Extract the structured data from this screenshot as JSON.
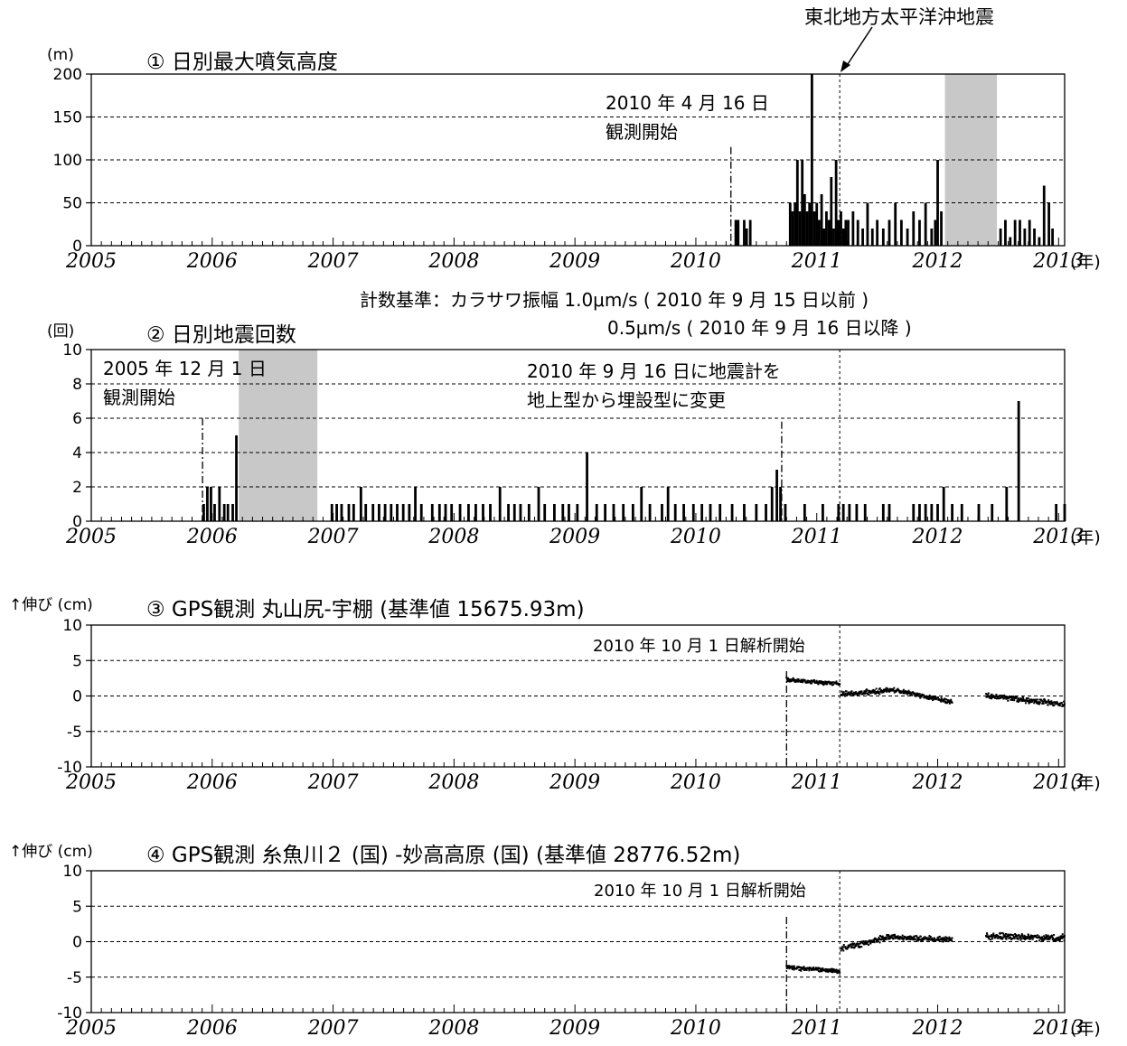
{
  "event_label": "東北地方太平洋沖地震",
  "year_unit": "(年)",
  "count_criteria": {
    "line1": "計数基準：カラサワ振幅 1.0μm/s ( 2010 年 9 月 15 日以前 )",
    "line2": "0.5μm/s ( 2010 年 9 月 16 日以降 )"
  },
  "chart_data": [
    {
      "type": "bar",
      "title": "① 日別最大噴気高度",
      "ylabel": "(m)",
      "xlim": [
        2005,
        2013.05
      ],
      "ylim": [
        0,
        200
      ],
      "yticks": [
        0,
        50,
        100,
        150,
        200
      ],
      "xticks": [
        "2005",
        "2006",
        "2007",
        "2008",
        "2009",
        "2010",
        "2011",
        "2012",
        "2013"
      ],
      "annotations": [
        "2010 年 4 月 16 日",
        "観測開始"
      ],
      "observation_start": 2010.29,
      "shaded_periods": [
        [
          2012.06,
          2012.49
        ]
      ],
      "series": [
        {
          "x": [
            2010.33,
            2010.35,
            2010.4,
            2010.42,
            2010.45,
            2010.78,
            2010.8,
            2010.82,
            2010.84,
            2010.86,
            2010.88,
            2010.9,
            2010.92,
            2010.94,
            2010.96,
            2010.98,
            2011.0,
            2011.02,
            2011.04,
            2011.06,
            2011.08,
            2011.1,
            2011.12,
            2011.14,
            2011.16,
            2011.18,
            2011.2,
            2011.22,
            2011.24,
            2011.26,
            2011.3,
            2011.34,
            2011.38,
            2011.42,
            2011.46,
            2011.5,
            2011.55,
            2011.6,
            2011.65,
            2011.7,
            2011.75,
            2011.8,
            2011.85,
            2011.9,
            2011.95,
            2011.98,
            2012.0,
            2012.03,
            2012.52,
            2012.56,
            2012.6,
            2012.64,
            2012.68,
            2012.72,
            2012.76,
            2012.8,
            2012.84,
            2012.88,
            2012.92,
            2012.95
          ],
          "values": [
            30,
            30,
            30,
            20,
            30,
            50,
            40,
            50,
            100,
            40,
            100,
            60,
            40,
            50,
            200,
            40,
            50,
            30,
            60,
            20,
            40,
            30,
            80,
            20,
            100,
            30,
            40,
            20,
            30,
            30,
            40,
            30,
            20,
            50,
            20,
            30,
            20,
            30,
            50,
            30,
            20,
            40,
            30,
            50,
            20,
            30,
            100,
            40,
            20,
            30,
            10,
            30,
            30,
            20,
            30,
            20,
            10,
            70,
            50,
            20
          ]
        }
      ]
    },
    {
      "type": "bar",
      "title": "② 日別地震回数",
      "ylabel": "(回)",
      "xlim": [
        2005,
        2013.05
      ],
      "ylim": [
        0,
        10
      ],
      "yticks": [
        0,
        2,
        4,
        6,
        8,
        10
      ],
      "xticks": [
        "2005",
        "2006",
        "2007",
        "2008",
        "2009",
        "2010",
        "2011",
        "2012",
        "2013"
      ],
      "annotations": [
        "2005 年 12 月 1 日",
        "観測開始",
        "2010 年 9 月 16 日に地震計を",
        "地上型から埋設型に変更"
      ],
      "observation_start": 2005.92,
      "instrument_change": 2010.71,
      "shaded_periods": [
        [
          2006.22,
          2006.87
        ]
      ],
      "series": [
        {
          "x": [
            2005.93,
            2005.96,
            2005.99,
            2006.02,
            2006.06,
            2006.1,
            2006.13,
            2006.17,
            2006.2,
            2006.99,
            2007.03,
            2007.07,
            2007.13,
            2007.17,
            2007.23,
            2007.27,
            2007.33,
            2007.38,
            2007.43,
            2007.48,
            2007.53,
            2007.58,
            2007.63,
            2007.68,
            2007.73,
            2007.82,
            2007.88,
            2007.93,
            2007.98,
            2008.05,
            2008.12,
            2008.18,
            2008.24,
            2008.3,
            2008.38,
            2008.45,
            2008.5,
            2008.55,
            2008.62,
            2008.7,
            2008.75,
            2008.83,
            2008.9,
            2008.95,
            2009.02,
            2009.1,
            2009.18,
            2009.25,
            2009.32,
            2009.4,
            2009.48,
            2009.55,
            2009.62,
            2009.72,
            2009.77,
            2009.83,
            2009.9,
            2009.98,
            2010.05,
            2010.12,
            2010.2,
            2010.3,
            2010.4,
            2010.5,
            2010.58,
            2010.63,
            2010.67,
            2010.7,
            2010.74,
            2010.9,
            2011.05,
            2011.18,
            2011.22,
            2011.27,
            2011.33,
            2011.4,
            2011.55,
            2011.6,
            2011.8,
            2011.85,
            2011.9,
            2011.95,
            2012.0,
            2012.05,
            2012.12,
            2012.2,
            2012.34,
            2012.45,
            2012.57,
            2012.67,
            2012.98,
            2013.05
          ],
          "values": [
            1,
            2,
            2,
            1,
            2,
            1,
            1,
            1,
            5,
            1,
            1,
            1,
            1,
            1,
            2,
            1,
            1,
            1,
            1,
            1,
            1,
            1,
            1,
            2,
            1,
            1,
            1,
            1,
            1,
            1,
            1,
            1,
            1,
            1,
            2,
            1,
            1,
            1,
            1,
            2,
            1,
            1,
            1,
            1,
            1,
            4,
            1,
            1,
            1,
            1,
            1,
            2,
            1,
            1,
            2,
            1,
            1,
            1,
            1,
            1,
            1,
            1,
            1,
            1,
            1,
            2,
            3,
            2,
            1,
            1,
            1,
            1,
            1,
            1,
            1,
            1,
            1,
            1,
            1,
            1,
            1,
            1,
            1,
            2,
            1,
            1,
            1,
            1,
            2,
            7,
            1,
            1
          ]
        }
      ]
    },
    {
      "type": "scatter",
      "title": "③ GPS観測 丸山尻-宇棚 (基準値 15675.93m)",
      "ylabel": "↑伸び (cm)",
      "xlim": [
        2005,
        2013.05
      ],
      "ylim": [
        -10,
        10
      ],
      "yticks": [
        -10,
        -5,
        0,
        5,
        10
      ],
      "xticks": [
        "2005",
        "2006",
        "2007",
        "2008",
        "2009",
        "2010",
        "2011",
        "2012",
        "2013"
      ],
      "annotations": [
        "2010 年 10 月 1 日解析開始"
      ],
      "analysis_start": 2010.75,
      "series": [
        {
          "segments": [
            {
              "x0": 2010.75,
              "x1": 2011.19,
              "y0": 2.3,
              "y1": 1.7,
              "scatter": 0.35
            },
            {
              "x0": 2011.2,
              "x1": 2011.4,
              "y0": 0.3,
              "y1": 0.4,
              "scatter": 0.4
            },
            {
              "x0": 2011.4,
              "x1": 2011.65,
              "y0": 0.5,
              "y1": 0.9,
              "scatter": 0.45
            },
            {
              "x0": 2011.65,
              "x1": 2012.12,
              "y0": 0.8,
              "y1": -0.8,
              "scatter": 0.4
            },
            {
              "x0": 2012.4,
              "x1": 2013.05,
              "y0": 0.1,
              "y1": -1.2,
              "scatter": 0.45
            }
          ]
        }
      ]
    },
    {
      "type": "scatter",
      "title": "④ GPS観測 糸魚川２ (国) -妙高高原 (国) (基準値 28776.52m)",
      "ylabel": "↑伸び (cm)",
      "xlim": [
        2005,
        2013.05
      ],
      "ylim": [
        -10,
        10
      ],
      "yticks": [
        -10,
        -5,
        0,
        5,
        10
      ],
      "xticks": [
        "2005",
        "2006",
        "2007",
        "2008",
        "2009",
        "2010",
        "2011",
        "2012",
        "2013"
      ],
      "annotations": [
        "2010 年 10 月 1 日解析開始"
      ],
      "analysis_start": 2010.75,
      "series": [
        {
          "segments": [
            {
              "x0": 2010.75,
              "x1": 2011.19,
              "y0": -3.6,
              "y1": -4.2,
              "scatter": 0.35
            },
            {
              "x0": 2011.2,
              "x1": 2011.35,
              "y0": -1.0,
              "y1": -0.4,
              "scatter": 0.5
            },
            {
              "x0": 2011.35,
              "x1": 2011.6,
              "y0": -0.4,
              "y1": 0.7,
              "scatter": 0.5
            },
            {
              "x0": 2011.6,
              "x1": 2012.12,
              "y0": 0.6,
              "y1": 0.3,
              "scatter": 0.45
            },
            {
              "x0": 2012.4,
              "x1": 2013.05,
              "y0": 0.8,
              "y1": 0.5,
              "scatter": 0.55
            }
          ]
        }
      ]
    }
  ]
}
